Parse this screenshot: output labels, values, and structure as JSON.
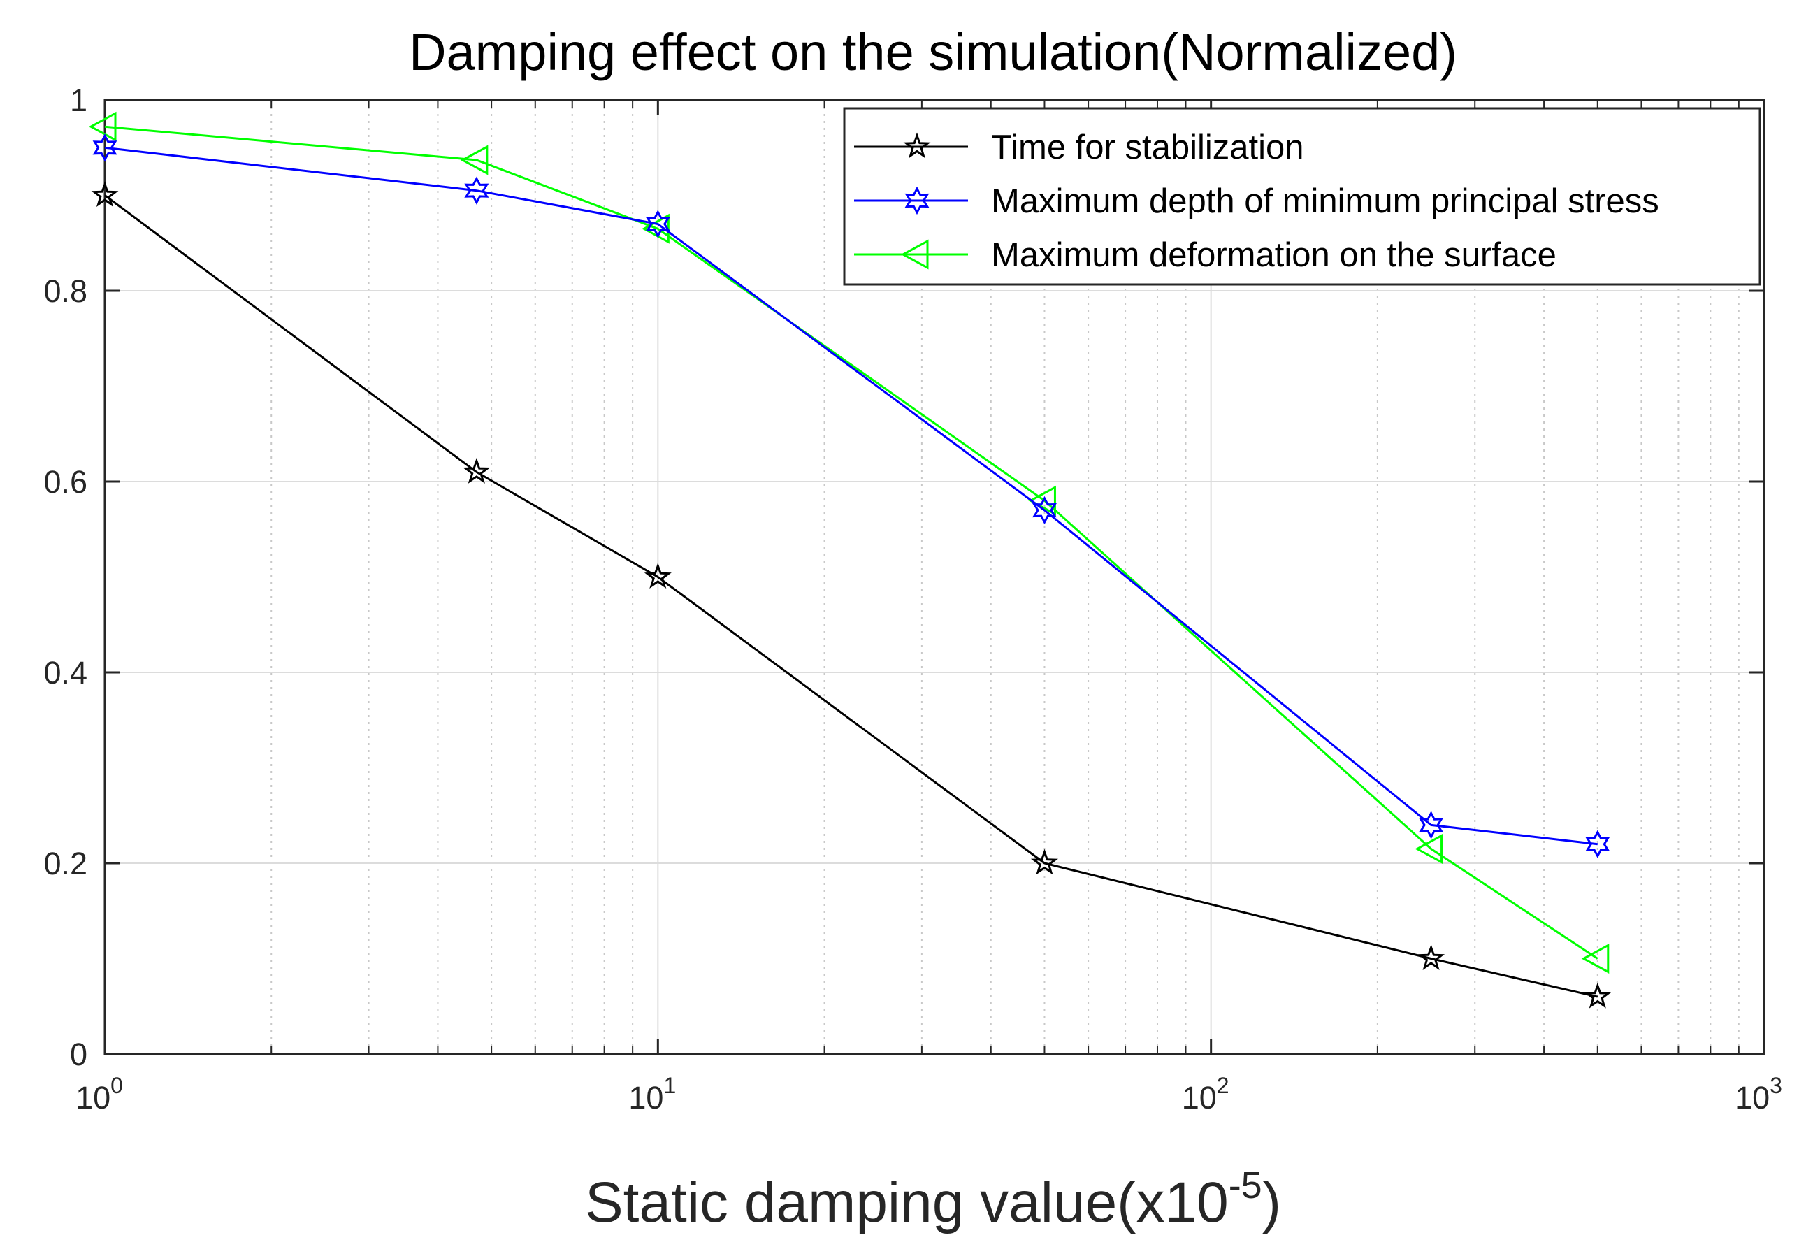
{
  "chart_data": {
    "type": "line",
    "title": "Damping effect on the simulation(Normalized)",
    "xlabel": "Static damping value(x10",
    "xlabel_exponent": "-5",
    "xlabel_close": ")",
    "ylabel": "",
    "xscale": "log",
    "xlim": [
      1,
      1000
    ],
    "ylim": [
      0,
      1
    ],
    "grid": true,
    "legend_position": "top-right",
    "x_ticks": [
      {
        "value": 1,
        "base": "10",
        "exp": "0"
      },
      {
        "value": 10,
        "base": "10",
        "exp": "1"
      },
      {
        "value": 100,
        "base": "10",
        "exp": "2"
      },
      {
        "value": 1000,
        "base": "10",
        "exp": "3"
      }
    ],
    "y_ticks": [
      {
        "value": 0,
        "label": "0"
      },
      {
        "value": 0.2,
        "label": "0.2"
      },
      {
        "value": 0.4,
        "label": "0.4"
      },
      {
        "value": 0.6,
        "label": "0.6"
      },
      {
        "value": 0.8,
        "label": "0.8"
      },
      {
        "value": 1,
        "label": "1"
      }
    ],
    "x": [
      1,
      4.7,
      10,
      50,
      250,
      500
    ],
    "series": [
      {
        "name": "Time for stabilization",
        "color": "#000000",
        "marker": "pentagram",
        "x": [
          1,
          4.7,
          10,
          50,
          250,
          500
        ],
        "values": [
          0.9,
          0.61,
          0.5,
          0.2,
          0.1,
          0.06
        ]
      },
      {
        "name": "Maximum depth of minimum principal stress",
        "color": "#0000ff",
        "marker": "hexagram",
        "x": [
          1,
          4.7,
          10,
          50,
          250,
          500
        ],
        "values": [
          0.95,
          0.905,
          0.87,
          0.57,
          0.24,
          0.22
        ]
      },
      {
        "name": " Maximum deformation on the surface",
        "color": "#00ff00",
        "marker": "triangle-left",
        "x": [
          1,
          4.7,
          10,
          50,
          250,
          500
        ],
        "values": [
          0.972,
          0.937,
          0.865,
          0.58,
          0.215,
          0.1
        ]
      }
    ]
  }
}
